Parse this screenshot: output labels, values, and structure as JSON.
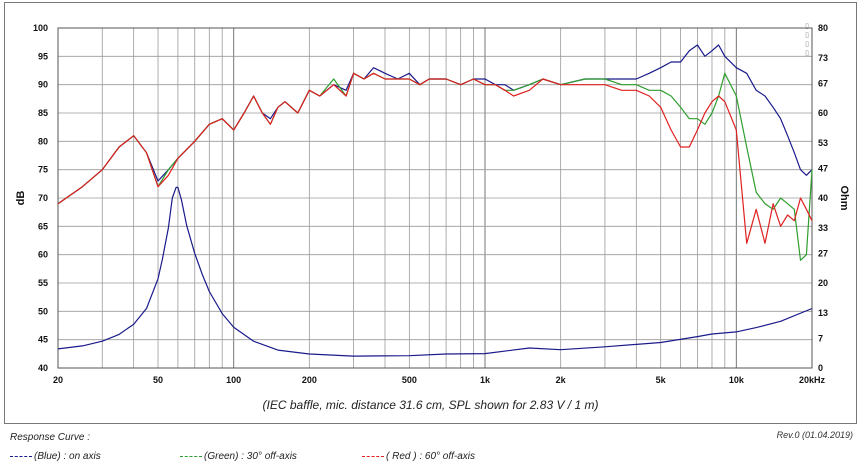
{
  "chart_data": {
    "type": "line",
    "x_scale": "log",
    "x_ticks": [
      {
        "value": 20,
        "label": "20"
      },
      {
        "value": 50,
        "label": "50"
      },
      {
        "value": 100,
        "label": "100"
      },
      {
        "value": 200,
        "label": "200"
      },
      {
        "value": 500,
        "label": "500"
      },
      {
        "value": 1000,
        "label": "1k"
      },
      {
        "value": 2000,
        "label": "2k"
      },
      {
        "value": 5000,
        "label": "5k"
      },
      {
        "value": 10000,
        "label": "10k"
      },
      {
        "value": 20000,
        "label": "20kHz"
      }
    ],
    "xlim": [
      20,
      20000
    ],
    "y_left": {
      "label": "dB",
      "ticks": [
        40,
        45,
        50,
        55,
        60,
        65,
        70,
        75,
        80,
        85,
        90,
        95,
        100
      ],
      "lim": [
        40,
        100
      ]
    },
    "y_right": {
      "label": "Ohm",
      "ticks": [
        0,
        7,
        13,
        20,
        27,
        33,
        40,
        47,
        53,
        60,
        67,
        73,
        80
      ],
      "lim": [
        0,
        80
      ]
    },
    "grid": true,
    "caption": "(IEC baffle, mic. distance 31.6 cm, SPL shown for 2.83 V / 1 m)",
    "revision": "Rev.0 (01.04.2019)",
    "legend_title": "Response Curve :",
    "legend": [
      {
        "text": "(Blue)  : on axis",
        "color": "#1a1a8c"
      },
      {
        "text": "(Green) : 30° off-axis",
        "color": "#2e9e2e"
      },
      {
        "text": "( Red ) : 60° off-axis",
        "color": "#e02020"
      }
    ],
    "series": [
      {
        "color": "#1a1a8c",
        "axis": "left",
        "x": [
          20,
          25,
          30,
          35,
          40,
          45,
          50,
          55,
          60,
          70,
          80,
          90,
          100,
          110,
          120,
          130,
          140,
          150,
          160,
          180,
          200,
          220,
          250,
          280,
          300,
          330,
          360,
          400,
          450,
          500,
          550,
          600,
          700,
          800,
          900,
          1000,
          1100,
          1200,
          1300,
          1500,
          1700,
          2000,
          2500,
          3000,
          3500,
          4000,
          4500,
          5000,
          5500,
          6000,
          6500,
          7000,
          7500,
          8000,
          8500,
          9000,
          10000,
          11000,
          12000,
          13000,
          14000,
          15000,
          16000,
          17000,
          18000,
          19000,
          20000
        ],
        "y": [
          69,
          72,
          75,
          79,
          81,
          78,
          73,
          75,
          77,
          80,
          83,
          84,
          82,
          85,
          88,
          85,
          84,
          86,
          87,
          85,
          89,
          88,
          90,
          89,
          92,
          91,
          93,
          92,
          91,
          92,
          90,
          91,
          91,
          90,
          91,
          91,
          90,
          90,
          89,
          90,
          91,
          90,
          91,
          91,
          91,
          91,
          92,
          93,
          94,
          94,
          96,
          97,
          95,
          96,
          97,
          95,
          93,
          92,
          89,
          88,
          86,
          84,
          81,
          78,
          75,
          74,
          75
        ]
      },
      {
        "color": "#2e9e2e",
        "axis": "left",
        "x": [
          20,
          25,
          30,
          35,
          40,
          45,
          50,
          55,
          60,
          70,
          80,
          90,
          100,
          110,
          120,
          130,
          140,
          150,
          160,
          180,
          200,
          220,
          250,
          280,
          300,
          330,
          360,
          400,
          450,
          500,
          550,
          600,
          700,
          800,
          900,
          1000,
          1100,
          1200,
          1300,
          1500,
          1700,
          2000,
          2500,
          3000,
          3500,
          4000,
          4500,
          5000,
          5500,
          6000,
          6500,
          7000,
          7500,
          8000,
          8500,
          9000,
          10000,
          11000,
          12000,
          13000,
          14000,
          15000,
          16000,
          17000,
          18000,
          19000,
          20000
        ],
        "y": [
          69,
          72,
          75,
          79,
          81,
          78,
          72,
          75,
          77,
          80,
          83,
          84,
          82,
          85,
          88,
          85,
          83,
          86,
          87,
          85,
          89,
          88,
          91,
          88,
          92,
          91,
          92,
          91,
          91,
          91,
          90,
          91,
          91,
          90,
          91,
          90,
          90,
          89,
          89,
          90,
          91,
          90,
          91,
          91,
          90,
          90,
          89,
          89,
          88,
          86,
          84,
          84,
          83,
          85,
          88,
          92,
          88,
          79,
          71,
          69,
          68,
          70,
          69,
          68,
          59,
          60,
          75
        ]
      },
      {
        "color": "#e02020",
        "axis": "left",
        "x": [
          20,
          25,
          30,
          35,
          40,
          45,
          50,
          55,
          60,
          70,
          80,
          90,
          100,
          110,
          120,
          130,
          140,
          150,
          160,
          180,
          200,
          220,
          250,
          280,
          300,
          330,
          360,
          400,
          450,
          500,
          550,
          600,
          700,
          800,
          900,
          1000,
          1100,
          1200,
          1300,
          1500,
          1700,
          2000,
          2500,
          3000,
          3500,
          4000,
          4500,
          5000,
          5500,
          6000,
          6500,
          7000,
          7500,
          8000,
          8500,
          9000,
          10000,
          11000,
          12000,
          13000,
          14000,
          15000,
          16000,
          17000,
          18000,
          19000,
          20000
        ],
        "y": [
          69,
          72,
          75,
          79,
          81,
          78,
          72,
          74,
          77,
          80,
          83,
          84,
          82,
          85,
          88,
          85,
          83,
          86,
          87,
          85,
          89,
          88,
          90,
          88,
          92,
          91,
          92,
          91,
          91,
          91,
          90,
          91,
          91,
          90,
          91,
          90,
          90,
          89,
          88,
          89,
          91,
          90,
          90,
          90,
          89,
          89,
          88,
          86,
          82,
          79,
          79,
          82,
          85,
          87,
          88,
          87,
          82,
          62,
          68,
          62,
          69,
          65,
          67,
          66,
          70,
          68,
          66
        ]
      },
      {
        "color": "#1a1a8c",
        "axis": "right",
        "x": [
          20,
          25,
          30,
          35,
          40,
          45,
          50,
          52,
          55,
          57,
          59,
          60,
          62,
          65,
          70,
          75,
          80,
          90,
          100,
          120,
          150,
          200,
          300,
          500,
          700,
          1000,
          1500,
          2000,
          3000,
          5000,
          7000,
          8000,
          10000,
          12000,
          15000,
          20000
        ],
        "y": [
          4.5,
          5.2,
          6.3,
          7.9,
          10.3,
          14,
          21,
          25.5,
          33,
          40,
          42.5,
          42.5,
          39.5,
          33.5,
          27,
          22,
          18,
          12.8,
          9.6,
          6.3,
          4.2,
          3.3,
          2.8,
          2.9,
          3.3,
          3.4,
          4.7,
          4.3,
          5.0,
          6.0,
          7.4,
          8.0,
          8.5,
          9.5,
          11,
          14
        ]
      }
    ]
  }
}
